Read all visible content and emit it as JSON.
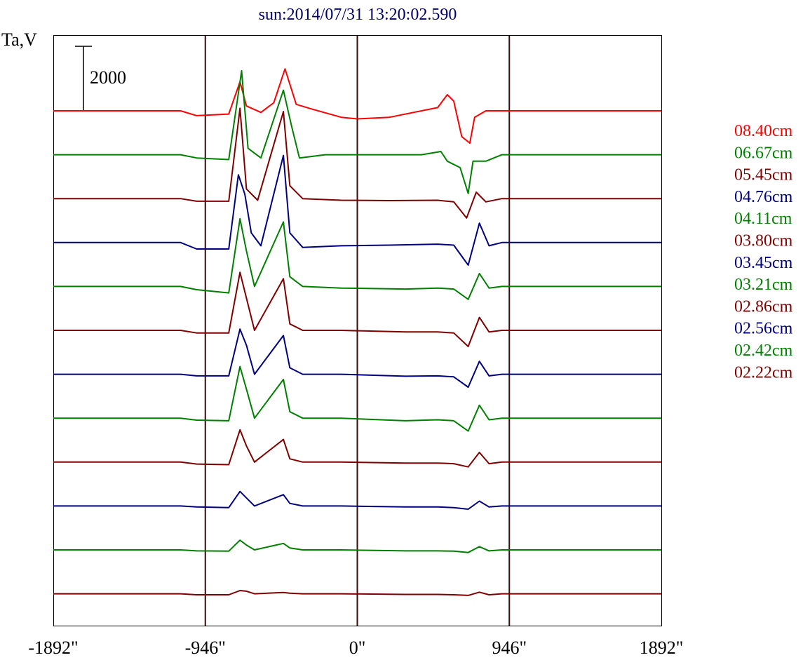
{
  "chart_data": {
    "type": "line",
    "title": "sun:2014/07/31 13:20:02.590",
    "ylabel": "Ta,V",
    "scale_bar_label": "2000",
    "scale_bar_value": 2000,
    "xlim": [
      -1892,
      1892
    ],
    "x_ticks": [
      {
        "value": -1892,
        "label": "-1892\""
      },
      {
        "value": -946,
        "label": "-946\""
      },
      {
        "value": 0,
        "label": "0\""
      },
      {
        "value": 946,
        "label": "946\""
      },
      {
        "value": 1892,
        "label": "1892\""
      }
    ],
    "vertical_lines": [
      -946,
      0,
      946
    ],
    "legend_placement": "right",
    "colors": {
      "red": "#ff0000",
      "green": "#008000",
      "maroon": "#800000",
      "navy": "#000080",
      "axis": "#000000",
      "vline": "#3a0a0a",
      "title": "#000066"
    },
    "series": [
      {
        "name": "08.40cm",
        "color": "#ff0000",
        "points": [
          [
            -1892,
            0
          ],
          [
            -1100,
            0
          ],
          [
            -1000,
            -150
          ],
          [
            -800,
            -100
          ],
          [
            -730,
            900
          ],
          [
            -690,
            150
          ],
          [
            -600,
            -50
          ],
          [
            -520,
            250
          ],
          [
            -450,
            1300
          ],
          [
            -380,
            200
          ],
          [
            -280,
            50
          ],
          [
            -100,
            -200
          ],
          [
            0,
            -250
          ],
          [
            200,
            -200
          ],
          [
            500,
            100
          ],
          [
            560,
            500
          ],
          [
            600,
            300
          ],
          [
            650,
            -800
          ],
          [
            700,
            -1000
          ],
          [
            730,
            -200
          ],
          [
            800,
            0
          ],
          [
            1892,
            0
          ]
        ]
      },
      {
        "name": "06.67cm",
        "color": "#008000",
        "points": [
          [
            -1892,
            0
          ],
          [
            -1100,
            0
          ],
          [
            -1000,
            -100
          ],
          [
            -800,
            -150
          ],
          [
            -720,
            2600
          ],
          [
            -680,
            200
          ],
          [
            -600,
            -100
          ],
          [
            -460,
            2000
          ],
          [
            -410,
            900
          ],
          [
            -360,
            -100
          ],
          [
            -200,
            0
          ],
          [
            400,
            0
          ],
          [
            520,
            100
          ],
          [
            560,
            -200
          ],
          [
            640,
            -400
          ],
          [
            690,
            -1200
          ],
          [
            720,
            -200
          ],
          [
            800,
            -200
          ],
          [
            900,
            0
          ],
          [
            1892,
            0
          ]
        ]
      },
      {
        "name": "05.45cm",
        "color": "#800000",
        "points": [
          [
            -1892,
            0
          ],
          [
            -1100,
            0
          ],
          [
            -1000,
            -80
          ],
          [
            -800,
            -80
          ],
          [
            -730,
            2800
          ],
          [
            -690,
            300
          ],
          [
            -620,
            -50
          ],
          [
            -460,
            2700
          ],
          [
            -420,
            400
          ],
          [
            -340,
            0
          ],
          [
            -100,
            -50
          ],
          [
            200,
            -60
          ],
          [
            500,
            -50
          ],
          [
            600,
            -100
          ],
          [
            680,
            -600
          ],
          [
            740,
            200
          ],
          [
            800,
            -100
          ],
          [
            900,
            0
          ],
          [
            1892,
            0
          ]
        ]
      },
      {
        "name": "04.76cm",
        "color": "#000080",
        "points": [
          [
            -1892,
            0
          ],
          [
            -1100,
            0
          ],
          [
            -1000,
            -200
          ],
          [
            -800,
            -200
          ],
          [
            -740,
            2100
          ],
          [
            -700,
            1500
          ],
          [
            -660,
            300
          ],
          [
            -600,
            -100
          ],
          [
            -460,
            2700
          ],
          [
            -420,
            300
          ],
          [
            -340,
            -150
          ],
          [
            -100,
            -100
          ],
          [
            200,
            -80
          ],
          [
            500,
            -50
          ],
          [
            600,
            -80
          ],
          [
            690,
            -700
          ],
          [
            760,
            600
          ],
          [
            820,
            -100
          ],
          [
            900,
            0
          ],
          [
            1892,
            0
          ]
        ]
      },
      {
        "name": "04.11cm",
        "color": "#008000",
        "points": [
          [
            -1892,
            0
          ],
          [
            -1100,
            0
          ],
          [
            -1000,
            -100
          ],
          [
            -800,
            -200
          ],
          [
            -730,
            2100
          ],
          [
            -690,
            1100
          ],
          [
            -640,
            0
          ],
          [
            -460,
            2000
          ],
          [
            -420,
            300
          ],
          [
            -340,
            0
          ],
          [
            -100,
            -50
          ],
          [
            300,
            -80
          ],
          [
            500,
            -50
          ],
          [
            600,
            -80
          ],
          [
            690,
            -400
          ],
          [
            760,
            400
          ],
          [
            820,
            -50
          ],
          [
            900,
            0
          ],
          [
            1892,
            0
          ]
        ]
      },
      {
        "name": "03.80cm",
        "color": "#800000",
        "points": [
          [
            -1892,
            0
          ],
          [
            -1100,
            0
          ],
          [
            -1000,
            -80
          ],
          [
            -800,
            -80
          ],
          [
            -730,
            1800
          ],
          [
            -690,
            1000
          ],
          [
            -640,
            0
          ],
          [
            -460,
            1600
          ],
          [
            -420,
            200
          ],
          [
            -340,
            0
          ],
          [
            -100,
            0
          ],
          [
            300,
            -50
          ],
          [
            500,
            -50
          ],
          [
            600,
            -80
          ],
          [
            690,
            -500
          ],
          [
            760,
            400
          ],
          [
            820,
            -50
          ],
          [
            900,
            0
          ],
          [
            1892,
            0
          ]
        ]
      },
      {
        "name": "03.45cm",
        "color": "#000080",
        "points": [
          [
            -1892,
            0
          ],
          [
            -1100,
            0
          ],
          [
            -1000,
            -50
          ],
          [
            -800,
            -50
          ],
          [
            -730,
            1400
          ],
          [
            -690,
            900
          ],
          [
            -640,
            0
          ],
          [
            -460,
            1200
          ],
          [
            -420,
            200
          ],
          [
            -340,
            0
          ],
          [
            -100,
            0
          ],
          [
            300,
            -60
          ],
          [
            500,
            -50
          ],
          [
            600,
            -80
          ],
          [
            690,
            -400
          ],
          [
            760,
            400
          ],
          [
            820,
            -50
          ],
          [
            900,
            0
          ],
          [
            1892,
            0
          ]
        ]
      },
      {
        "name": "03.21cm",
        "color": "#008000",
        "points": [
          [
            -1892,
            0
          ],
          [
            -1100,
            0
          ],
          [
            -1000,
            -60
          ],
          [
            -800,
            -80
          ],
          [
            -730,
            1600
          ],
          [
            -690,
            900
          ],
          [
            -640,
            0
          ],
          [
            -460,
            1200
          ],
          [
            -420,
            200
          ],
          [
            -340,
            0
          ],
          [
            -100,
            0
          ],
          [
            300,
            -80
          ],
          [
            500,
            -50
          ],
          [
            600,
            -80
          ],
          [
            690,
            -400
          ],
          [
            760,
            400
          ],
          [
            820,
            -50
          ],
          [
            900,
            0
          ],
          [
            1892,
            0
          ]
        ]
      },
      {
        "name": "02.86cm",
        "color": "#800000",
        "points": [
          [
            -1892,
            0
          ],
          [
            -1100,
            0
          ],
          [
            -1000,
            -60
          ],
          [
            -800,
            -80
          ],
          [
            -730,
            1000
          ],
          [
            -690,
            500
          ],
          [
            -640,
            0
          ],
          [
            -460,
            700
          ],
          [
            -420,
            100
          ],
          [
            -340,
            0
          ],
          [
            -100,
            0
          ],
          [
            300,
            -30
          ],
          [
            500,
            -30
          ],
          [
            600,
            -50
          ],
          [
            690,
            -150
          ],
          [
            760,
            300
          ],
          [
            820,
            -50
          ],
          [
            900,
            0
          ],
          [
            1892,
            0
          ]
        ]
      },
      {
        "name": "02.56cm",
        "color": "#000080",
        "points": [
          [
            -1892,
            0
          ],
          [
            -1100,
            0
          ],
          [
            -1000,
            -30
          ],
          [
            -800,
            -50
          ],
          [
            -730,
            450
          ],
          [
            -690,
            250
          ],
          [
            -640,
            0
          ],
          [
            -460,
            350
          ],
          [
            -420,
            80
          ],
          [
            -340,
            0
          ],
          [
            -100,
            0
          ],
          [
            300,
            -30
          ],
          [
            500,
            -30
          ],
          [
            600,
            -50
          ],
          [
            690,
            -100
          ],
          [
            760,
            150
          ],
          [
            820,
            -30
          ],
          [
            900,
            0
          ],
          [
            1892,
            0
          ]
        ]
      },
      {
        "name": "02.42cm",
        "color": "#008000",
        "points": [
          [
            -1892,
            0
          ],
          [
            -1100,
            0
          ],
          [
            -1000,
            -30
          ],
          [
            -800,
            -40
          ],
          [
            -730,
            300
          ],
          [
            -690,
            150
          ],
          [
            -640,
            0
          ],
          [
            -460,
            200
          ],
          [
            -420,
            60
          ],
          [
            -340,
            0
          ],
          [
            -100,
            0
          ],
          [
            300,
            -30
          ],
          [
            500,
            -30
          ],
          [
            600,
            -40
          ],
          [
            690,
            -80
          ],
          [
            760,
            100
          ],
          [
            820,
            -30
          ],
          [
            900,
            0
          ],
          [
            1892,
            0
          ]
        ]
      },
      {
        "name": "02.22cm",
        "color": "#800000",
        "points": [
          [
            -1892,
            0
          ],
          [
            -1100,
            0
          ],
          [
            -1000,
            -30
          ],
          [
            -800,
            -30
          ],
          [
            -730,
            100
          ],
          [
            -690,
            80
          ],
          [
            -640,
            0
          ],
          [
            -460,
            40
          ],
          [
            -420,
            20
          ],
          [
            -340,
            0
          ],
          [
            -100,
            0
          ],
          [
            300,
            -20
          ],
          [
            500,
            -20
          ],
          [
            600,
            -30
          ],
          [
            690,
            -50
          ],
          [
            760,
            50
          ],
          [
            820,
            -30
          ],
          [
            900,
            0
          ],
          [
            1892,
            0
          ]
        ]
      }
    ]
  }
}
